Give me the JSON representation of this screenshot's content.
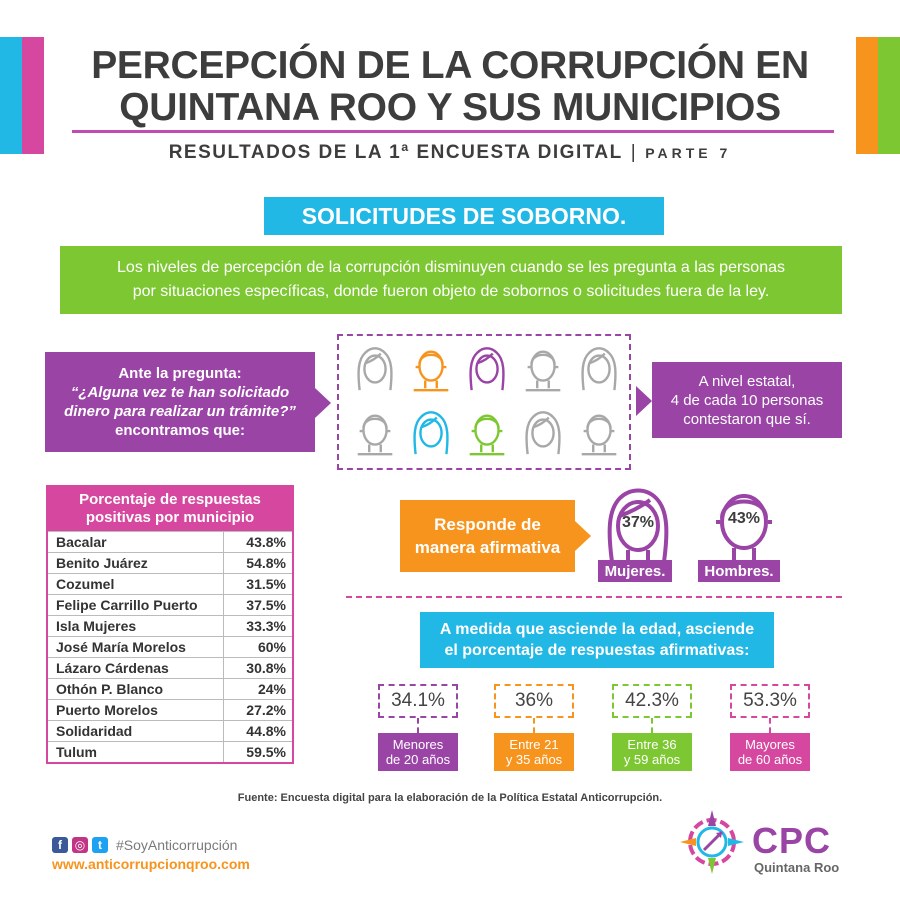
{
  "colors": {
    "purple": "#9a44a6",
    "magenta": "#d6479f",
    "cyan": "#22b8e6",
    "green": "#7dc832",
    "orange": "#f7941d",
    "gray": "#a8a8a8"
  },
  "header": {
    "title_line1": "PERCEPCIÓN DE LA CORRUPCIÓN EN",
    "title_line2": "QUINTANA ROO Y SUS MUNICIPIOS",
    "subtitle": "RESULTADOS DE LA 1ª ENCUESTA DIGITAL",
    "separator": "|",
    "part": "PARTE 7"
  },
  "section_title": "SOLICITUDES DE SOBORNO.",
  "intro": {
    "line1": "Los niveles de percepción de la corrupción disminuyen cuando se les pregunta a las personas",
    "line2": "por situaciones específicas, donde fueron objeto de sobornos o solicitudes fuera de la ley."
  },
  "question": {
    "line1": "Ante la pregunta:",
    "line2": "“¿Alguna vez te han solicitado",
    "line3": "dinero para realizar un trámite?”",
    "line4": "encontramos que:"
  },
  "people": {
    "icons": [
      {
        "type": "woman-icon",
        "color": "gray"
      },
      {
        "type": "man-icon",
        "color": "orange"
      },
      {
        "type": "woman-icon",
        "color": "purple"
      },
      {
        "type": "man-icon",
        "color": "gray"
      },
      {
        "type": "woman-icon",
        "color": "gray"
      },
      {
        "type": "man-icon",
        "color": "gray"
      },
      {
        "type": "woman-icon",
        "color": "cyan"
      },
      {
        "type": "man-icon",
        "color": "green"
      },
      {
        "type": "woman-icon",
        "color": "gray"
      },
      {
        "type": "man-icon",
        "color": "gray"
      }
    ]
  },
  "state_result": {
    "line1": "A nivel estatal,",
    "line2": "4 de cada 10 personas",
    "line3": "contestaron que sí."
  },
  "municipal_table": {
    "header_line1": "Porcentaje de respuestas",
    "header_line2": "positivas por municipio",
    "rows": [
      {
        "name": "Bacalar",
        "value": "43.8%"
      },
      {
        "name": "Benito Juárez",
        "value": "54.8%"
      },
      {
        "name": "Cozumel",
        "value": "31.5%"
      },
      {
        "name": "Felipe Carrillo Puerto",
        "value": "37.5%"
      },
      {
        "name": "Isla Mujeres",
        "value": "33.3%"
      },
      {
        "name": "José María Morelos",
        "value": "60%"
      },
      {
        "name": "Lázaro Cárdenas",
        "value": "30.8%"
      },
      {
        "name": "Othón P. Blanco",
        "value": "24%"
      },
      {
        "name": "Puerto Morelos",
        "value": "27.2%"
      },
      {
        "name": "Solidaridad",
        "value": "44.8%"
      },
      {
        "name": "Tulum",
        "value": "59.5%"
      }
    ]
  },
  "gender": {
    "label_line1": "Responde de",
    "label_line2": "manera afirmativa",
    "women_pct": "37%",
    "women_label": "Mujeres.",
    "men_pct": "43%",
    "men_label": "Hombres."
  },
  "age": {
    "header_line1": "A medida que asciende la edad, asciende",
    "header_line2": "el porcentaje de respuestas afirmativas:",
    "groups": [
      {
        "pct": "34.1%",
        "label_line1": "Menores",
        "label_line2": "de 20 años",
        "color": "purple"
      },
      {
        "pct": "36%",
        "label_line1": "Entre 21",
        "label_line2": "y 35 años",
        "color": "orange"
      },
      {
        "pct": "42.3%",
        "label_line1": "Entre 36",
        "label_line2": "y 59 años",
        "color": "green"
      },
      {
        "pct": "53.3%",
        "label_line1": "Mayores",
        "label_line2": "de 60 años",
        "color": "magenta"
      }
    ]
  },
  "source": "Fuente: Encuesta digital para la elaboración de  la Política Estatal Anticorrupción.",
  "footer": {
    "hashtag": "#SoyAnticorrupción",
    "website": "www.anticorrupcionqroo.com",
    "logo_text": "CPC",
    "logo_sub": "Quintana Roo",
    "social_icons": [
      "facebook-icon",
      "instagram-icon",
      "twitter-icon"
    ]
  }
}
